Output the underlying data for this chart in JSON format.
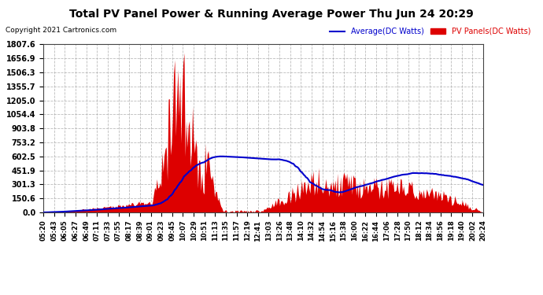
{
  "title": "Total PV Panel Power & Running Average Power Thu Jun 24 20:29",
  "copyright": "Copyright 2021 Cartronics.com",
  "legend_avg": "Average(DC Watts)",
  "legend_pv": "PV Panels(DC Watts)",
  "ylabel_values": [
    0.0,
    150.6,
    301.3,
    451.9,
    602.5,
    753.2,
    903.8,
    1054.4,
    1205.0,
    1355.7,
    1506.3,
    1656.9,
    1807.6
  ],
  "ymax": 1807.6,
  "ymin": 0.0,
  "bg_color": "#ffffff",
  "plot_bg_color": "#ffffff",
  "grid_color": "#aaaaaa",
  "bar_color": "#dd0000",
  "avg_line_color": "#0000cc",
  "title_color": "#000000",
  "copyright_color": "#000000",
  "x_tick_labels": [
    "05:20",
    "05:43",
    "06:05",
    "06:27",
    "06:49",
    "07:11",
    "07:33",
    "07:55",
    "08:17",
    "08:39",
    "09:01",
    "09:23",
    "09:45",
    "10:07",
    "10:29",
    "10:51",
    "11:13",
    "11:35",
    "11:57",
    "12:19",
    "12:41",
    "13:03",
    "13:26",
    "13:48",
    "14:10",
    "14:32",
    "14:54",
    "15:16",
    "15:38",
    "16:00",
    "16:22",
    "16:44",
    "17:06",
    "17:28",
    "17:50",
    "18:12",
    "18:34",
    "18:56",
    "19:18",
    "19:40",
    "20:02",
    "20:24"
  ]
}
